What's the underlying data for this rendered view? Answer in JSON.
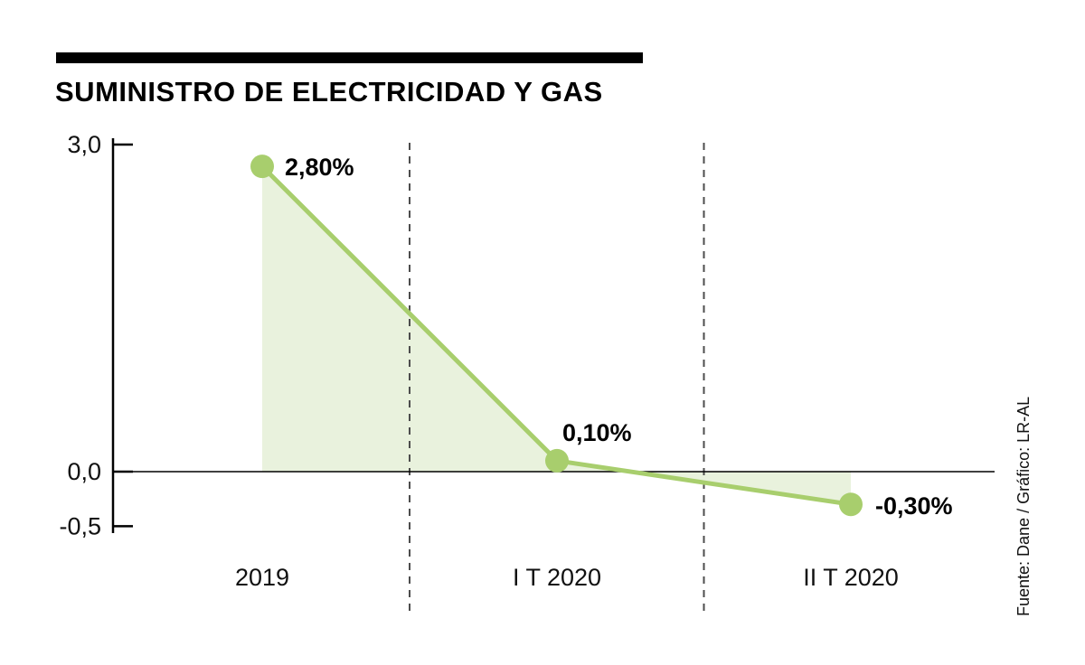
{
  "source_note": "Fuente: Dane / Gráfico: LR-AL",
  "chart_data": {
    "type": "line",
    "title": "SUMINISTRO DE ELECTRICIDAD Y GAS",
    "categories": [
      "2019",
      "I T 2020",
      "II T 2020"
    ],
    "values": [
      2.8,
      0.1,
      -0.3
    ],
    "point_labels": [
      "2,80%",
      "0,10%",
      "-0,30%"
    ],
    "yticks": [
      {
        "label": "3,0",
        "value": 3.0
      },
      {
        "label": "0,0",
        "value": 0.0
      },
      {
        "label": "-0,5",
        "value": -0.5
      }
    ],
    "ylim": [
      -0.5,
      3.0
    ],
    "xlabel": "",
    "ylabel": "",
    "legend": "none",
    "grid": "dashed-vertical-separators",
    "area_fill": true,
    "colors": {
      "line": "#a8ce6d",
      "fill": "#e9f2dd",
      "dot": "#a8ce6d",
      "axis": "#000000",
      "separator": "#4d4d4d",
      "text": "#111111"
    }
  }
}
